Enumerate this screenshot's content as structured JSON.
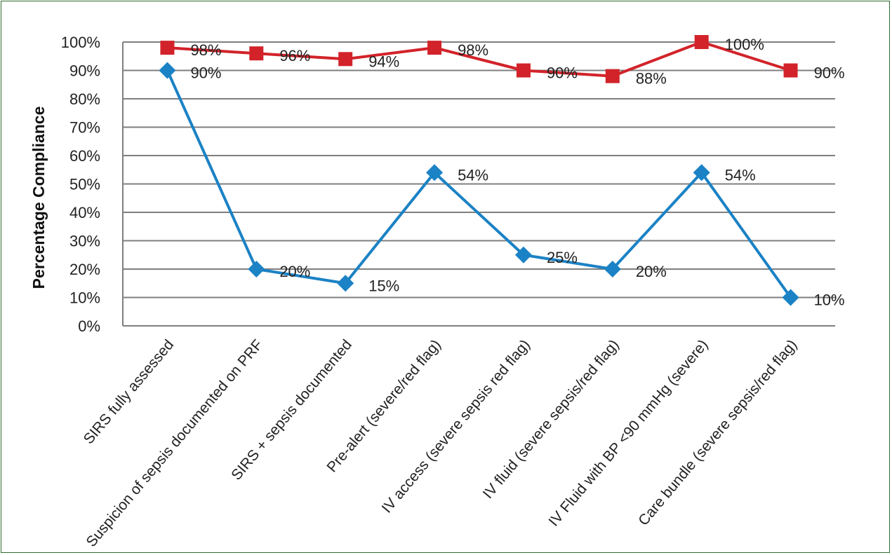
{
  "chart_data": {
    "type": "line",
    "title": "",
    "xlabel": "",
    "ylabel": "Percentage Compliance",
    "ylim": [
      0,
      100
    ],
    "ytick_labels": [
      "0%",
      "10%",
      "20%",
      "30%",
      "40%",
      "50%",
      "60%",
      "70%",
      "80%",
      "90%",
      "100%"
    ],
    "categories": [
      "SIRS fully assessed",
      "Suspicion of sepsis documented on PRF",
      "SIRS + sepsis documented",
      "Pre-alert (severe/red flag)",
      "IV access (severe sepsis red flag)",
      "IV fluid (severe sepsis/red flag)",
      "IV Fluid with BP <90 mmHg (severe)",
      "Care bundle (severe sepsis/red flag)"
    ],
    "grid": true,
    "legend": "none",
    "series": [
      {
        "color": "#d2232a",
        "marker": "square",
        "values": [
          98,
          96,
          94,
          98,
          90,
          88,
          100,
          90
        ],
        "labels": [
          "98%",
          "96%",
          "94%",
          "98%",
          "90%",
          "88%",
          "100%",
          "90%"
        ]
      },
      {
        "color": "#1b82c5",
        "marker": "diamond",
        "values": [
          90,
          20,
          15,
          54,
          25,
          20,
          54,
          10
        ],
        "labels": [
          "90%",
          "20%",
          "15%",
          "54%",
          "25%",
          "20%",
          "54%",
          "10%"
        ]
      }
    ]
  },
  "colors": {
    "frame_border": "#2e6b2e",
    "gridline": "#7f7f7f"
  }
}
